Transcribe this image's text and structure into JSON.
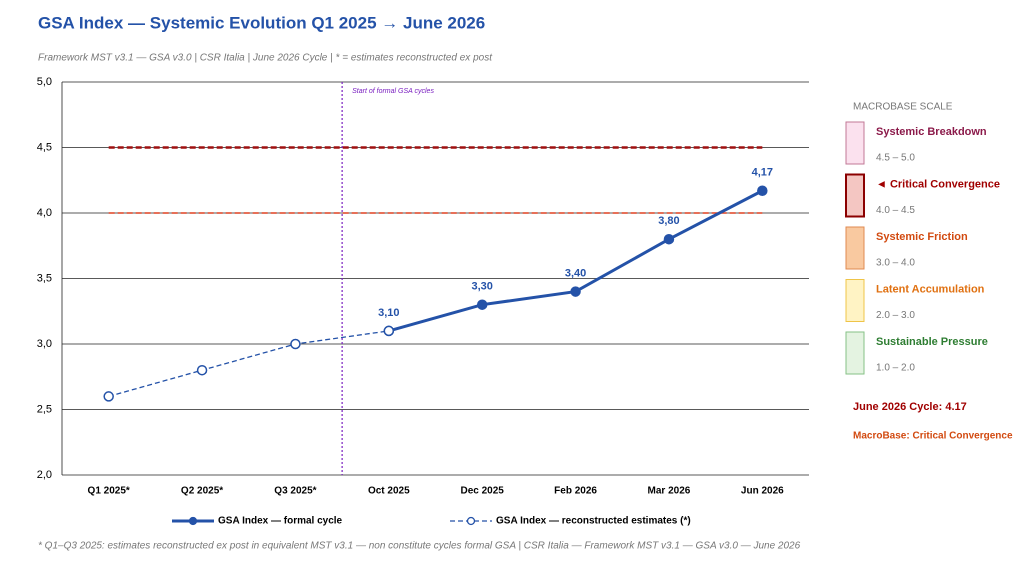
{
  "chart_data": {
    "type": "line",
    "title": "GSA Index — Systemic Evolution  Q1 2025 → June 2026",
    "subtitle": "Framework MST v3.1 — GSA v3.0  |  CSR Italia  |  June 2026 Cycle  |  * = estimates reconstructed ex post",
    "categories": [
      "Q1 2025*",
      "Q2 2025*",
      "Q3 2025*",
      "Oct 2025",
      "Dec 2025",
      "Feb 2026",
      "Mar 2026",
      "Jun 2026"
    ],
    "series": [
      {
        "name": "GSA Index — formal cycle",
        "color": "#2452a8",
        "dashed": false,
        "filled_markers": true,
        "values": [
          null,
          null,
          null,
          3.1,
          3.3,
          3.4,
          3.8,
          4.17
        ],
        "value_labels": [
          null,
          null,
          null,
          "3,10",
          "3,30",
          "3,40",
          "3,80",
          "4,17"
        ]
      },
      {
        "name": "GSA Index — reconstructed estimates (*)",
        "color": "#2452a8",
        "dashed": true,
        "filled_markers": false,
        "values": [
          2.6,
          2.8,
          3.0,
          3.1,
          null,
          null,
          null,
          null
        ]
      }
    ],
    "ylim": [
      2.0,
      5.0
    ],
    "yticks": [
      {
        "value": 2.0,
        "label": "2,0"
      },
      {
        "value": 2.5,
        "label": "2,5"
      },
      {
        "value": 3.0,
        "label": "3,0"
      },
      {
        "value": 3.5,
        "label": "3,5"
      },
      {
        "value": 4.0,
        "label": "4,0"
      },
      {
        "value": 4.5,
        "label": "4,5"
      },
      {
        "value": 5.0,
        "label": "5,0"
      }
    ],
    "grid": true,
    "reference_lines": [
      {
        "value": 4.5,
        "color": "#a01010"
      },
      {
        "value": 4.0,
        "color": "#e04020"
      }
    ],
    "annotation": {
      "text": "Start of formal GSA cycles",
      "color": "#7a1fc0"
    },
    "footnote": "* Q1–Q3 2025: estimates reconstructed ex post in equivalent MST v3.1 — non constitute cycles formal GSA  |  CSR Italia — Framework MST v3.1 — GSA v3.0 — June 2026",
    "side_panel": {
      "title": "MACROBASE SCALE",
      "levels": [
        {
          "name": "Systemic Breakdown",
          "range": "4.5 – 5.0",
          "color": "#8b1a4a",
          "fill": "#fbe1ee",
          "border": "#c27896"
        },
        {
          "name": "◄ Critical Convergence",
          "range": "4.0 – 4.5",
          "color": "#a00000",
          "fill": "#f4c6c2",
          "border": "#8b0000"
        },
        {
          "name": "Systemic Friction",
          "range": "3.0 – 4.0",
          "color": "#d24a10",
          "fill": "#f9c9a0",
          "border": "#e08a50"
        },
        {
          "name": "Latent Accumulation",
          "range": "2.0 – 3.0",
          "color": "#e07010",
          "fill": "#fff3c4",
          "border": "#efc448"
        },
        {
          "name": "Sustainable Pressure",
          "range": "1.0 – 2.0",
          "color": "#2e7d32",
          "fill": "#e4f3e1",
          "border": "#86c286"
        }
      ],
      "status": [
        {
          "text": "June 2026 Cycle: 4.17",
          "color": "#a00000"
        },
        {
          "text": "MacroBase: Critical Convergence",
          "color": "#d24a10"
        }
      ]
    }
  }
}
